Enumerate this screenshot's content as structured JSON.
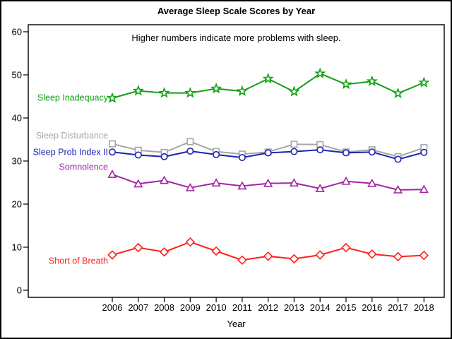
{
  "chart_data": {
    "type": "line",
    "title": "Average Sleep Scale Scores by Year",
    "subtitle": "Higher numbers indicate more problems with sleep.",
    "xlabel": "Year",
    "ylabel": "",
    "x": [
      2006,
      2007,
      2008,
      2009,
      2010,
      2011,
      2012,
      2013,
      2014,
      2015,
      2016,
      2017,
      2018
    ],
    "ylim": [
      0,
      60
    ],
    "yticks": [
      0,
      10,
      20,
      30,
      40,
      50,
      60
    ],
    "grid": false,
    "legend_position": "direct-labels-at-left-of-lines",
    "axis_color": "#000000",
    "background_color": "#FFFFFF",
    "series": [
      {
        "name": "Sleep Inadequacy",
        "color": "#10A010",
        "marker": "star",
        "marker_icon": "star-icon",
        "values": [
          44.6,
          46.3,
          45.8,
          45.8,
          46.8,
          46.2,
          49.1,
          46.1,
          50.3,
          47.8,
          48.5,
          45.7,
          48.2
        ]
      },
      {
        "name": "Sleep Disturbance",
        "color": "#A6A6A6",
        "marker": "square",
        "marker_icon": "square-icon",
        "values": [
          34.0,
          32.5,
          32.0,
          34.5,
          32.2,
          31.6,
          32.1,
          33.9,
          33.8,
          32.1,
          32.6,
          31.0,
          33.1
        ]
      },
      {
        "name": "Sleep Prob Index II",
        "color": "#2121B2",
        "marker": "circle",
        "marker_icon": "circle-icon",
        "values": [
          32.1,
          31.4,
          31.0,
          32.3,
          31.5,
          30.8,
          31.9,
          32.2,
          32.6,
          31.9,
          32.1,
          30.4,
          32.0
        ]
      },
      {
        "name": "Somnolence",
        "color": "#A226A2",
        "marker": "triangle",
        "marker_icon": "triangle-icon",
        "values": [
          26.9,
          24.7,
          25.5,
          23.8,
          24.9,
          24.2,
          24.8,
          24.9,
          23.6,
          25.3,
          24.8,
          23.3,
          23.4
        ]
      },
      {
        "name": "Short of Breath",
        "color": "#FF1E1E",
        "marker": "diamond",
        "marker_icon": "diamond-icon",
        "values": [
          8.2,
          9.9,
          8.9,
          11.2,
          9.1,
          7.0,
          7.9,
          7.3,
          8.2,
          9.9,
          8.4,
          7.8,
          8.1
        ]
      }
    ]
  }
}
